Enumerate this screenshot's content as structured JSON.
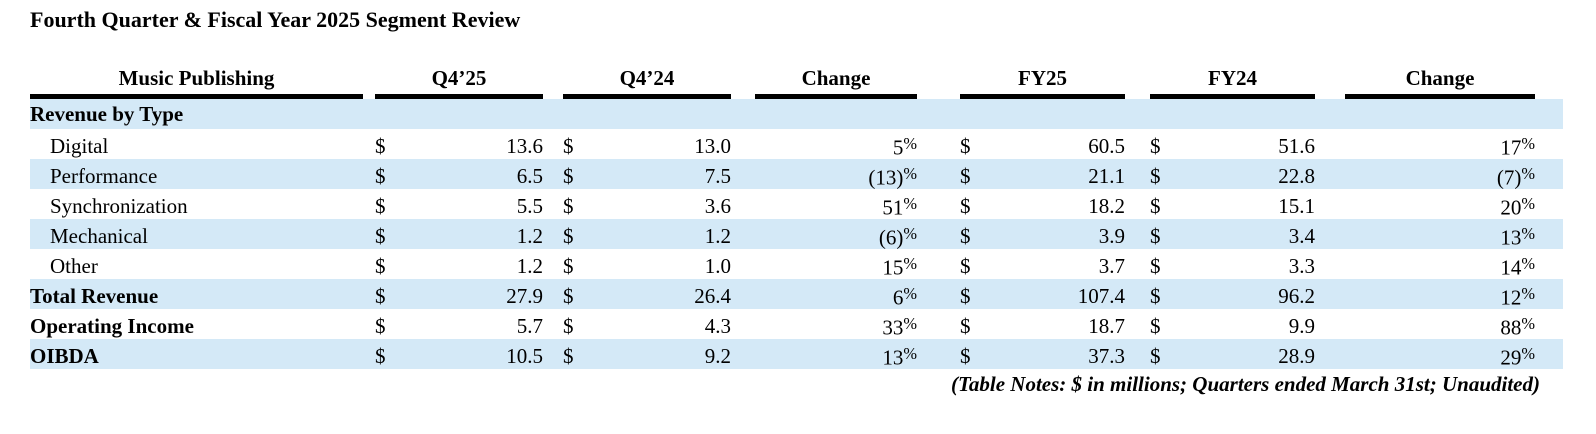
{
  "title": "Fourth Quarter & Fiscal Year 2025 Segment Review",
  "table": {
    "headers": {
      "segment": "Music Publishing",
      "q4_25": "Q4’25",
      "q4_24": "Q4’24",
      "change_q": "Change",
      "fy25": "FY25",
      "fy24": "FY24",
      "change_fy": "Change"
    },
    "currency": "$",
    "rows": [
      {
        "label": "Revenue by Type",
        "q4_25": "",
        "q4_24": "",
        "change_q": "",
        "fy25": "",
        "fy24": "",
        "change_fy": ""
      },
      {
        "label": "Digital",
        "q4_25": "13.6",
        "q4_24": "13.0",
        "change_q": "5%",
        "fy25": "60.5",
        "fy24": "51.6",
        "change_fy": "17%"
      },
      {
        "label": "Performance",
        "q4_25": "6.5",
        "q4_24": "7.5",
        "change_q": "(13)%",
        "fy25": "21.1",
        "fy24": "22.8",
        "change_fy": "(7)%"
      },
      {
        "label": "Synchronization",
        "q4_25": "5.5",
        "q4_24": "3.6",
        "change_q": "51%",
        "fy25": "18.2",
        "fy24": "15.1",
        "change_fy": "20%"
      },
      {
        "label": "Mechanical",
        "q4_25": "1.2",
        "q4_24": "1.2",
        "change_q": "(6)%",
        "fy25": "3.9",
        "fy24": "3.4",
        "change_fy": "13%"
      },
      {
        "label": "Other",
        "q4_25": "1.2",
        "q4_24": "1.0",
        "change_q": "15%",
        "fy25": "3.7",
        "fy24": "3.3",
        "change_fy": "14%"
      },
      {
        "label": "Total Revenue",
        "q4_25": "27.9",
        "q4_24": "26.4",
        "change_q": "6%",
        "fy25": "107.4",
        "fy24": "96.2",
        "change_fy": "12%"
      },
      {
        "label": "Operating Income",
        "q4_25": "5.7",
        "q4_24": "4.3",
        "change_q": "33%",
        "fy25": "18.7",
        "fy24": "9.9",
        "change_fy": "88%"
      },
      {
        "label": "OIBDA",
        "q4_25": "10.5",
        "q4_24": "9.2",
        "change_q": "13%",
        "fy25": "37.3",
        "fy24": "28.9",
        "change_fy": "29%"
      }
    ],
    "notes": "(Table Notes: $ in millions; Quarters ended March 31st; Unaudited)"
  },
  "colors": {
    "row_highlight": "#d4e9f7",
    "header_rule": "#000000",
    "text": "#000000"
  }
}
